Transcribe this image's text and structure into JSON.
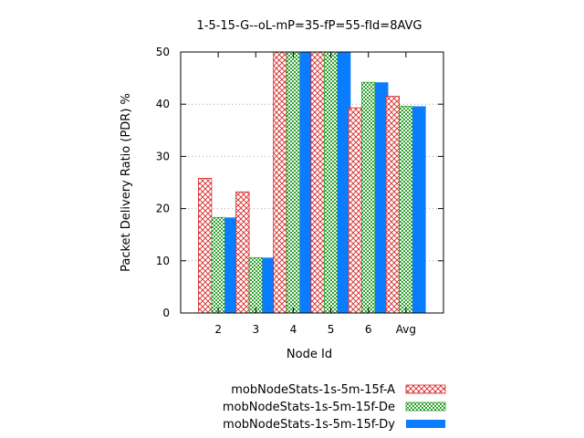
{
  "chart_data": {
    "type": "bar",
    "title": "1-5-15-G--oL-mP=35-fP=55-fId=8AVG",
    "xlabel": "Node Id",
    "ylabel": "Packet Delivery Ratio (PDR) %",
    "categories": [
      "2",
      "3",
      "4",
      "5",
      "6",
      "Avg"
    ],
    "ylim": [
      0,
      50
    ],
    "yticks": [
      0,
      10,
      20,
      30,
      40,
      50
    ],
    "grid": "horizontal-dotted",
    "legend_position": "bottom-right",
    "series": [
      {
        "name": "mobNodeStats-1s-5m-15f-A",
        "values": [
          25.8,
          23.2,
          50,
          50,
          39.3,
          41.5
        ],
        "color": "#d62728",
        "fill": "crosshatch"
      },
      {
        "name": "mobNodeStats-1s-5m-15f-De",
        "values": [
          18.3,
          10.6,
          50,
          50,
          44.2,
          39.6
        ],
        "color": "#2ca02c",
        "fill": "checker"
      },
      {
        "name": "mobNodeStats-1s-5m-15f-Dy",
        "values": [
          18.3,
          10.6,
          50,
          50,
          44.2,
          39.6
        ],
        "color": "#0a7cff",
        "fill": "solid"
      }
    ]
  }
}
